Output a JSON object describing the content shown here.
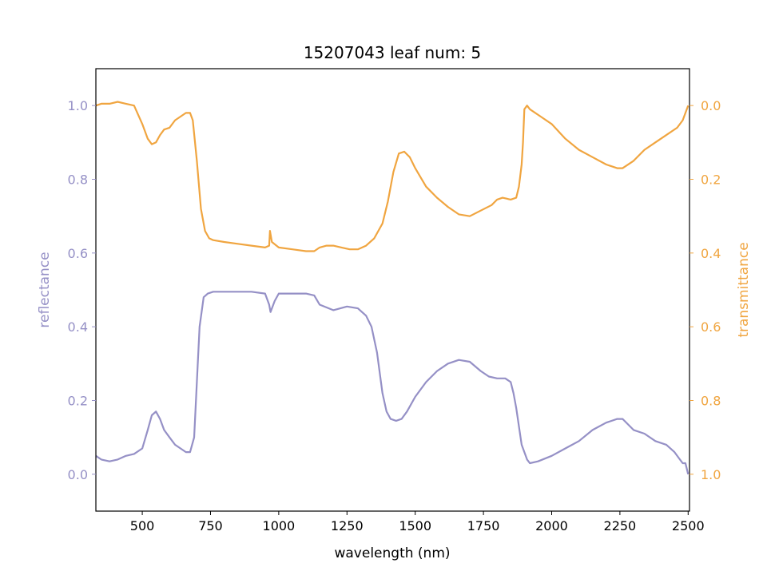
{
  "chart_data": {
    "type": "line",
    "title": "15207043 leaf num: 5",
    "xlabel": "wavelength (nm)",
    "ylabel_left": "reflectance",
    "ylabel_right": "transmittance",
    "xlim": [
      330,
      2505
    ],
    "ylim_left": [
      -0.1,
      1.1
    ],
    "ylim_right_inverted": [
      1.1,
      -0.1
    ],
    "x_ticks": [
      500,
      750,
      1000,
      1250,
      1500,
      1750,
      2000,
      2250,
      2500
    ],
    "y_ticks_left": [
      "0.0",
      "0.2",
      "0.4",
      "0.6",
      "0.8",
      "1.0"
    ],
    "y_ticks_right": [
      "0.0",
      "0.2",
      "0.4",
      "0.6",
      "0.8",
      "1.0"
    ],
    "grid": false,
    "colors": {
      "reflectance": "#9590c6",
      "transmittance": "#f0a540",
      "axes": "#000000"
    },
    "series": [
      {
        "axis": "left",
        "color": "#9590c6",
        "x": [
          330,
          350,
          380,
          410,
          440,
          470,
          500,
          520,
          535,
          550,
          565,
          580,
          600,
          620,
          640,
          660,
          675,
          690,
          700,
          710,
          725,
          740,
          760,
          800,
          850,
          900,
          950,
          965,
          970,
          985,
          1000,
          1050,
          1100,
          1130,
          1150,
          1200,
          1250,
          1290,
          1320,
          1340,
          1360,
          1380,
          1395,
          1410,
          1430,
          1450,
          1470,
          1500,
          1540,
          1580,
          1620,
          1660,
          1700,
          1740,
          1770,
          1800,
          1830,
          1850,
          1860,
          1870,
          1880,
          1890,
          1900,
          1910,
          1920,
          1950,
          2000,
          2050,
          2100,
          2150,
          2200,
          2240,
          2260,
          2300,
          2340,
          2380,
          2420,
          2450,
          2470,
          2480,
          2490,
          2500
        ],
        "y": [
          0.05,
          0.04,
          0.035,
          0.04,
          0.05,
          0.055,
          0.07,
          0.12,
          0.16,
          0.17,
          0.15,
          0.12,
          0.1,
          0.08,
          0.07,
          0.06,
          0.06,
          0.1,
          0.25,
          0.4,
          0.48,
          0.49,
          0.495,
          0.495,
          0.495,
          0.495,
          0.49,
          0.46,
          0.44,
          0.47,
          0.49,
          0.49,
          0.49,
          0.485,
          0.46,
          0.445,
          0.455,
          0.45,
          0.43,
          0.4,
          0.33,
          0.22,
          0.17,
          0.15,
          0.145,
          0.15,
          0.17,
          0.21,
          0.25,
          0.28,
          0.3,
          0.31,
          0.305,
          0.28,
          0.265,
          0.26,
          0.26,
          0.25,
          0.22,
          0.18,
          0.13,
          0.08,
          0.06,
          0.04,
          0.03,
          0.035,
          0.05,
          0.07,
          0.09,
          0.12,
          0.14,
          0.15,
          0.15,
          0.12,
          0.11,
          0.09,
          0.08,
          0.06,
          0.04,
          0.03,
          0.03,
          0.0
        ]
      },
      {
        "axis": "right",
        "color": "#f0a540",
        "x": [
          330,
          350,
          380,
          410,
          440,
          470,
          500,
          520,
          535,
          550,
          565,
          580,
          600,
          620,
          640,
          660,
          675,
          685,
          700,
          715,
          730,
          745,
          760,
          800,
          850,
          900,
          950,
          965,
          968,
          975,
          1000,
          1050,
          1100,
          1130,
          1150,
          1175,
          1200,
          1230,
          1260,
          1290,
          1320,
          1350,
          1380,
          1400,
          1420,
          1440,
          1460,
          1480,
          1500,
          1540,
          1580,
          1620,
          1660,
          1700,
          1740,
          1780,
          1800,
          1820,
          1850,
          1870,
          1880,
          1890,
          1895,
          1900,
          1910,
          1920,
          1960,
          2000,
          2050,
          2100,
          2150,
          2200,
          2240,
          2260,
          2300,
          2340,
          2380,
          2420,
          2460,
          2480,
          2500
        ],
        "y": [
          0.0,
          -0.005,
          -0.005,
          -0.01,
          -0.005,
          0.0,
          0.05,
          0.09,
          0.105,
          0.1,
          0.08,
          0.065,
          0.06,
          0.04,
          0.03,
          0.02,
          0.02,
          0.04,
          0.15,
          0.28,
          0.34,
          0.36,
          0.365,
          0.37,
          0.375,
          0.38,
          0.385,
          0.38,
          0.34,
          0.37,
          0.385,
          0.39,
          0.395,
          0.395,
          0.385,
          0.38,
          0.38,
          0.385,
          0.39,
          0.39,
          0.38,
          0.36,
          0.32,
          0.26,
          0.18,
          0.13,
          0.125,
          0.14,
          0.17,
          0.22,
          0.25,
          0.275,
          0.295,
          0.3,
          0.285,
          0.27,
          0.255,
          0.25,
          0.255,
          0.25,
          0.22,
          0.16,
          0.1,
          0.01,
          0.0,
          0.01,
          0.03,
          0.05,
          0.09,
          0.12,
          0.14,
          0.16,
          0.17,
          0.17,
          0.15,
          0.12,
          0.1,
          0.08,
          0.06,
          0.04,
          0.0
        ]
      }
    ]
  }
}
